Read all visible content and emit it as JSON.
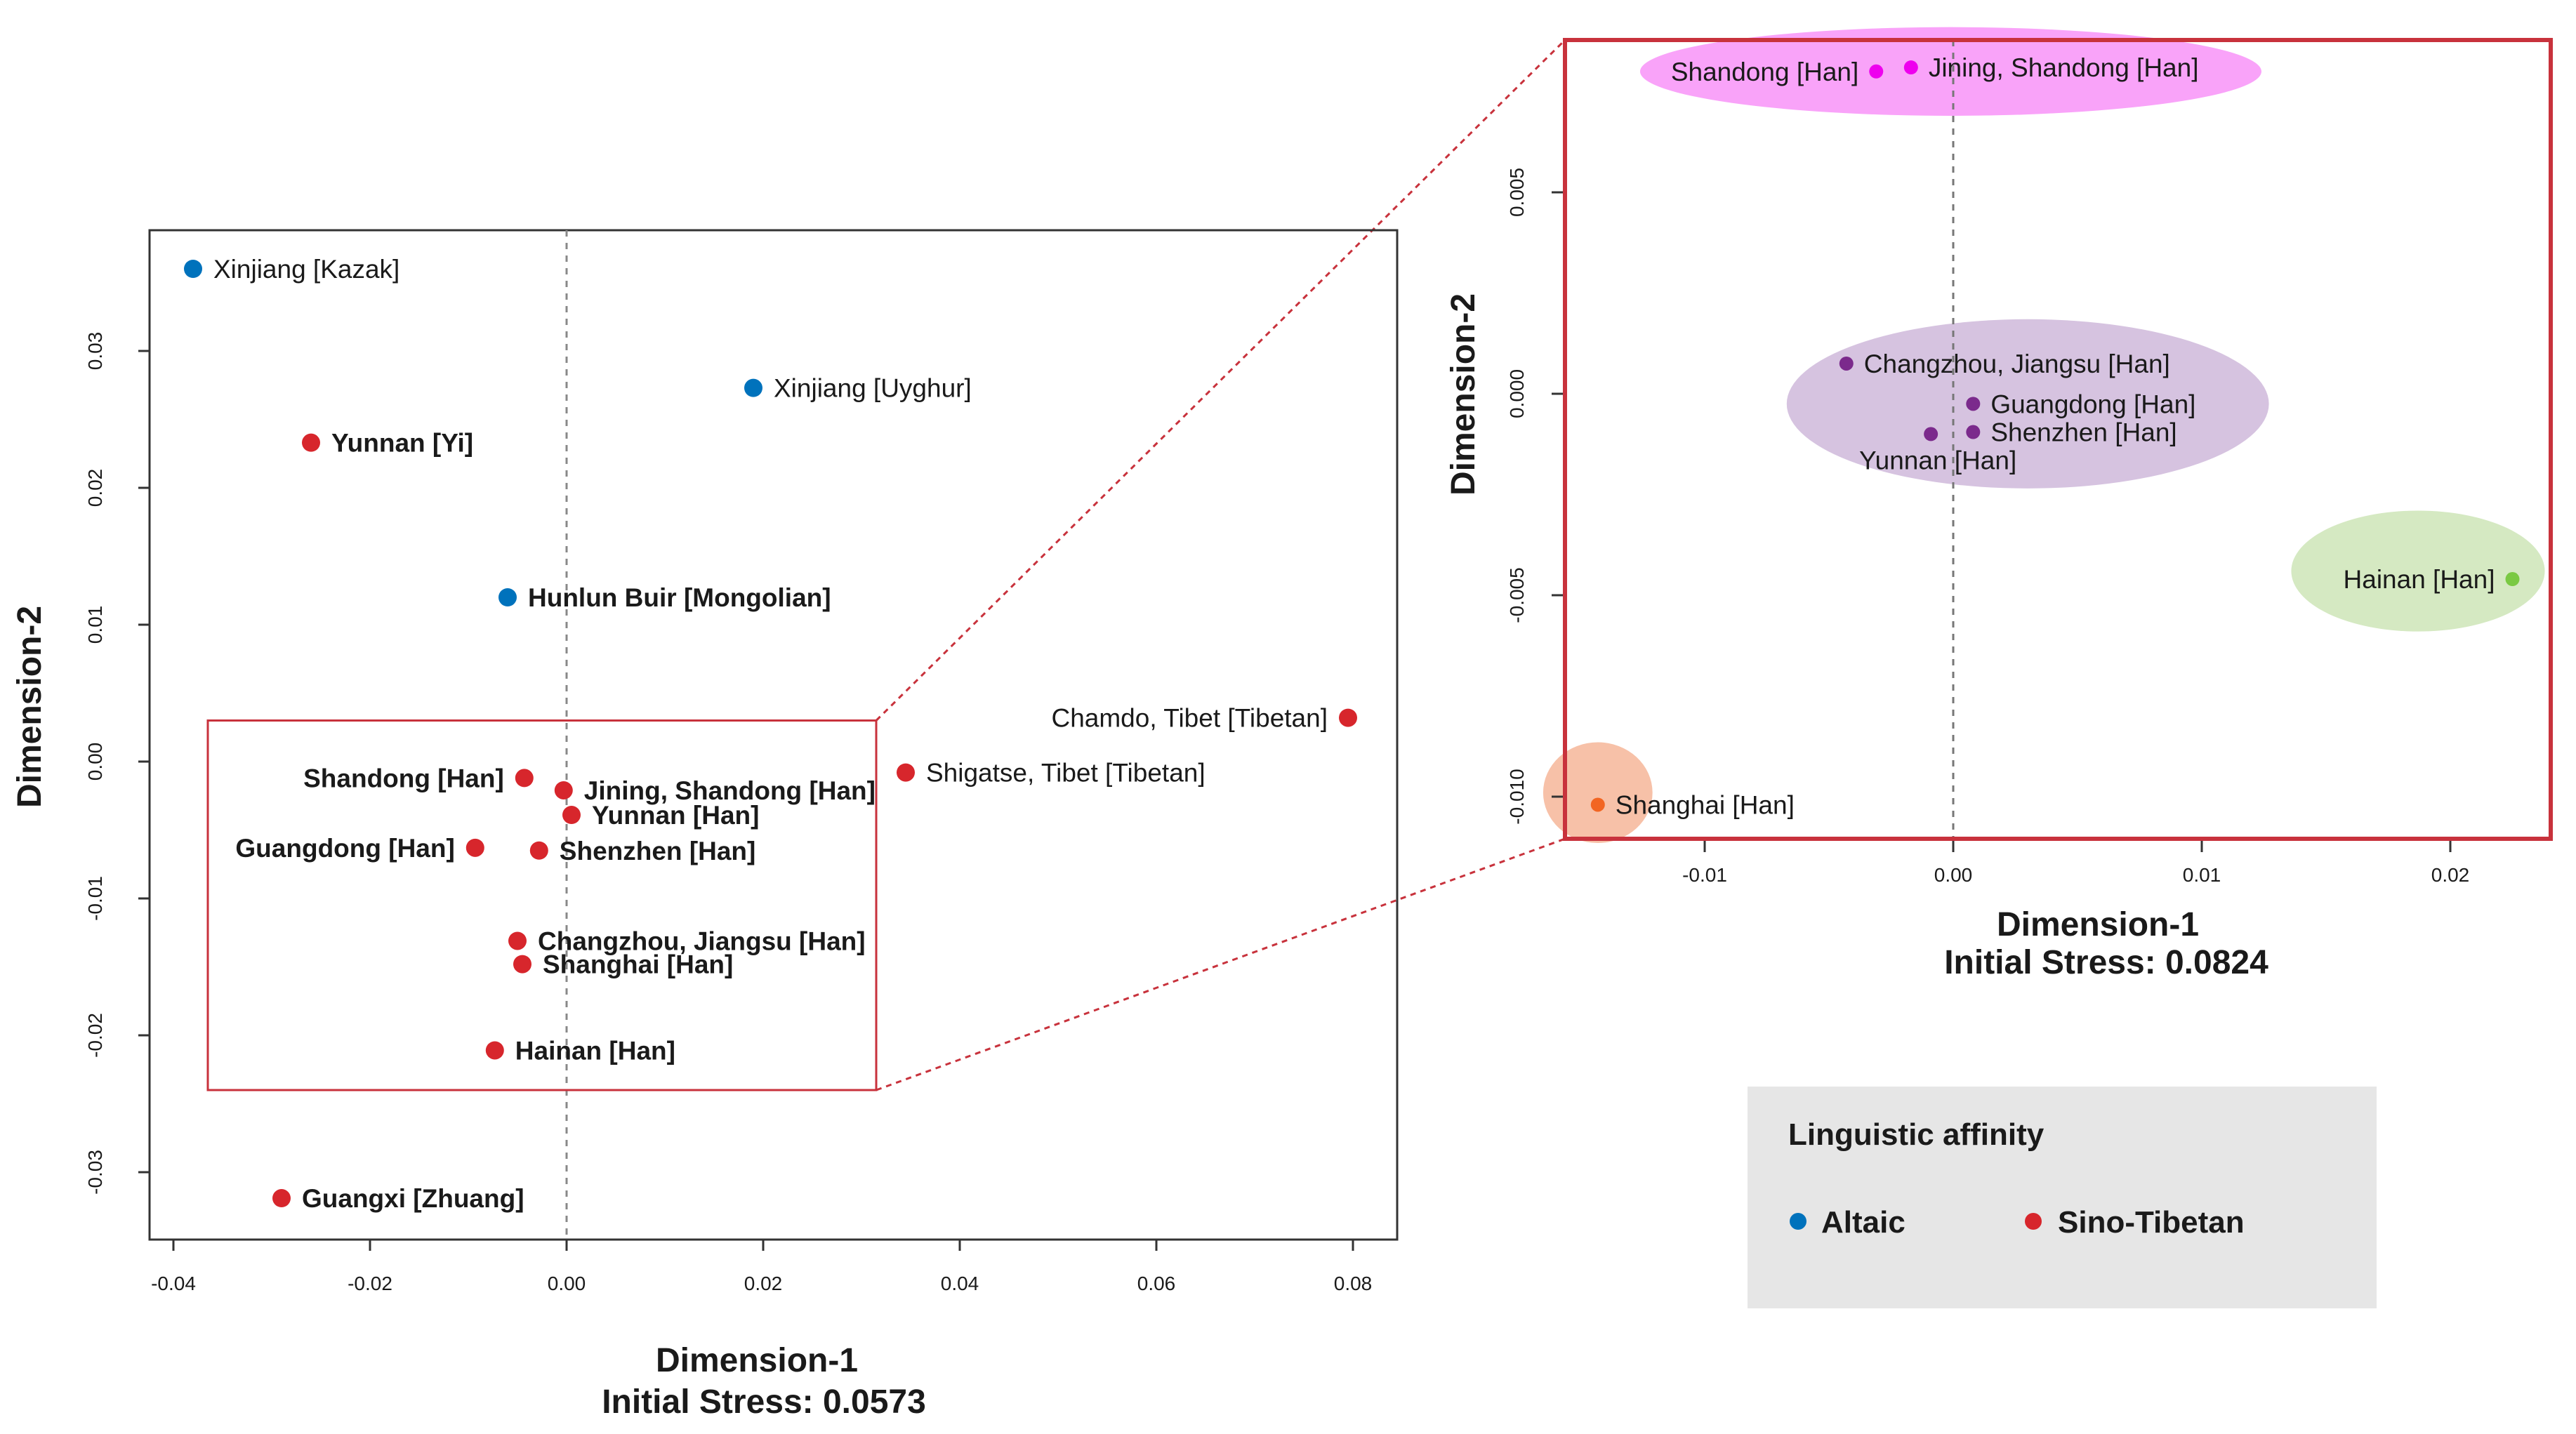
{
  "chart_data": [
    {
      "type": "scatter",
      "title": "",
      "xlabel": "Dimension-1",
      "ylabel": "Dimension-2",
      "stress_label": "Initial Stress: 0.0573",
      "xlim": [
        -0.04,
        0.08
      ],
      "ylim": [
        -0.035,
        0.038
      ],
      "x_ticks": [
        {
          "value": -0.04,
          "label": "-0.04"
        },
        {
          "value": -0.02,
          "label": "-0.02"
        },
        {
          "value": 0.0,
          "label": "0.00"
        },
        {
          "value": 0.02,
          "label": "0.02"
        },
        {
          "value": 0.04,
          "label": "0.04"
        },
        {
          "value": 0.06,
          "label": "0.06"
        },
        {
          "value": 0.08,
          "label": "0.08"
        }
      ],
      "y_ticks": [
        {
          "value": -0.03,
          "label": "-0.03"
        },
        {
          "value": -0.02,
          "label": "-0.02"
        },
        {
          "value": -0.01,
          "label": "-0.01"
        },
        {
          "value": 0.0,
          "label": "0.00"
        },
        {
          "value": 0.01,
          "label": "0.01"
        },
        {
          "value": 0.02,
          "label": "0.02"
        },
        {
          "value": 0.03,
          "label": "0.03"
        }
      ],
      "zoom_region": {
        "x": [
          -0.0365,
          0.0315
        ],
        "y": [
          -0.024,
          0.003
        ]
      },
      "points": [
        {
          "label": "Xinjiang [Kazak]",
          "x": -0.038,
          "y": 0.036,
          "group": "Altaic",
          "label_side": "right",
          "label_bold": false
        },
        {
          "label": "Xinjiang [Uyghur]",
          "x": 0.019,
          "y": 0.0273,
          "group": "Altaic",
          "label_side": "right",
          "label_bold": false
        },
        {
          "label": "Yunnan [Yi]",
          "x": -0.026,
          "y": 0.0233,
          "group": "Sino-Tibetan",
          "label_side": "right",
          "label_bold": true
        },
        {
          "label": "Hunlun Buir [Mongolian]",
          "x": -0.006,
          "y": 0.012,
          "group": "Altaic",
          "label_side": "right",
          "label_bold": true
        },
        {
          "label": "Chamdo, Tibet [Tibetan]",
          "x": 0.0795,
          "y": 0.0032,
          "group": "Sino-Tibetan",
          "label_side": "left",
          "label_bold": false
        },
        {
          "label": "Shigatse, Tibet [Tibetan]",
          "x": 0.0345,
          "y": -0.0008,
          "group": "Sino-Tibetan",
          "label_side": "right",
          "label_bold": false
        },
        {
          "label": "Shandong [Han]",
          "x": -0.0043,
          "y": -0.0012,
          "group": "Sino-Tibetan",
          "label_side": "left",
          "label_bold": true
        },
        {
          "label": "Jining, Shandong [Han]",
          "x": -0.0003,
          "y": -0.0021,
          "group": "Sino-Tibetan",
          "label_side": "right",
          "label_bold": true
        },
        {
          "label": "Yunnan [Han]",
          "x": 0.0005,
          "y": -0.0039,
          "group": "Sino-Tibetan",
          "label_side": "right",
          "label_bold": true
        },
        {
          "label": "Guangdong [Han]",
          "x": -0.0093,
          "y": -0.0063,
          "group": "Sino-Tibetan",
          "label_side": "left",
          "label_bold": true
        },
        {
          "label": "Shenzhen [Han]",
          "x": -0.0028,
          "y": -0.0065,
          "group": "Sino-Tibetan",
          "label_side": "right",
          "label_bold": true
        },
        {
          "label": "Changzhou, Jiangsu [Han]",
          "x": -0.005,
          "y": -0.0131,
          "group": "Sino-Tibetan",
          "label_side": "right",
          "label_bold": true
        },
        {
          "label": "Shanghai [Han]",
          "x": -0.0045,
          "y": -0.0148,
          "group": "Sino-Tibetan",
          "label_side": "right",
          "label_bold": true
        },
        {
          "label": "Hainan [Han]",
          "x": -0.0073,
          "y": -0.0211,
          "group": "Sino-Tibetan",
          "label_side": "right",
          "label_bold": true
        },
        {
          "label": "Guangxi [Zhuang]",
          "x": -0.029,
          "y": -0.0319,
          "group": "Sino-Tibetan",
          "label_side": "right",
          "label_bold": true
        }
      ]
    },
    {
      "type": "scatter",
      "title": "",
      "xlabel": "Dimension-1",
      "ylabel": "Dimension-2",
      "stress_label": "Initial Stress: 0.0824",
      "xlim": [
        -0.0157,
        0.0242
      ],
      "ylim": [
        -0.0111,
        0.0087
      ],
      "x_ticks": [
        {
          "value": -0.01,
          "label": "-0.01"
        },
        {
          "value": 0.0,
          "label": "0.00"
        },
        {
          "value": 0.01,
          "label": "0.01"
        },
        {
          "value": 0.02,
          "label": "0.02"
        }
      ],
      "y_ticks": [
        {
          "value": -0.01,
          "label": "-0.010"
        },
        {
          "value": -0.005,
          "label": "-0.005"
        },
        {
          "value": 0.0,
          "label": "0.000"
        },
        {
          "value": 0.005,
          "label": "0.005"
        }
      ],
      "clusters": [
        {
          "color": "#f9a3f9",
          "cx": -0.0001,
          "cy": 0.008,
          "rx": 0.0125,
          "ry": 0.0011
        },
        {
          "color": "#d6c3e0",
          "cx": 0.003,
          "cy": -0.00025,
          "rx": 0.0097,
          "ry": 0.0021
        },
        {
          "color": "#d5e9c2",
          "cx": 0.0187,
          "cy": -0.0044,
          "rx": 0.0051,
          "ry": 0.0015
        },
        {
          "color": "#f7c1a8",
          "cx": -0.0143,
          "cy": -0.0099,
          "rx": 0.0022,
          "ry": 0.00125
        }
      ],
      "points": [
        {
          "label": "Shandong [Han]",
          "x": -0.0031,
          "y": 0.008,
          "color": "#ee00ee",
          "label_side": "left"
        },
        {
          "label": "Jining, Shandong [Han]",
          "x": -0.0017,
          "y": 0.0081,
          "color": "#ee00ee",
          "label_side": "right"
        },
        {
          "label": "Changzhou, Jiangsu [Han]",
          "x": -0.0043,
          "y": 0.00075,
          "color": "#7b2a8c",
          "label_side": "right"
        },
        {
          "label": "Guangdong [Han]",
          "x": 0.0008,
          "y": -0.00025,
          "color": "#7b2a8c",
          "label_side": "right"
        },
        {
          "label": "Shenzhen [Han]",
          "x": 0.0008,
          "y": -0.00095,
          "color": "#7b2a8c",
          "label_side": "right"
        },
        {
          "label": "Yunnan [Han]",
          "x": -0.0009,
          "y": -0.001,
          "color": "#7b2a8c",
          "label_side": "below"
        },
        {
          "label": "Hainan [Han]",
          "x": 0.0225,
          "y": -0.0046,
          "color": "#7ac943",
          "label_side": "left"
        },
        {
          "label": "Shanghai [Han]",
          "x": -0.0143,
          "y": -0.0102,
          "color": "#f26522",
          "label_side": "right"
        }
      ]
    }
  ],
  "legend": {
    "title": "Linguistic affinity",
    "items": [
      {
        "label": "Altaic",
        "color": "#0072bc"
      },
      {
        "label": "Sino-Tibetan",
        "color": "#d7262c"
      }
    ]
  },
  "colors": {
    "altaic": "#0072bc",
    "sino_tibetan": "#d7262c",
    "zoom_frame": "#c8323c",
    "legend_bg": "#e6e6e6"
  }
}
